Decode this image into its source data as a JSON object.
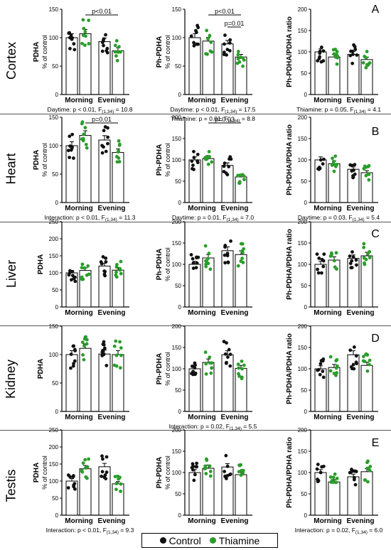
{
  "colors": {
    "control": "#111111",
    "thiamine": "#2a9d2a"
  },
  "legend": {
    "control": "Control",
    "thiamine": "Thiamine"
  },
  "groups": [
    "Morning",
    "Evening"
  ],
  "tissues": [
    "Cortex",
    "Heart",
    "Liver",
    "Kidney",
    "Testis"
  ],
  "panel_letters": [
    "A",
    "B",
    "C",
    "D",
    "E"
  ],
  "chart_data": [
    {
      "type": "bar",
      "row": 0,
      "col": 0,
      "ylabel": "PDHA",
      "ylabel2": "% of control",
      "ylim": [
        0,
        150
      ],
      "yticks": [
        0,
        50,
        100,
        150
      ],
      "categories": [
        "Morning",
        "Evening"
      ],
      "series": [
        {
          "name": "Control",
          "values": [
            100,
            93
          ]
        },
        {
          "name": "Thiamine",
          "values": [
            107,
            77
          ]
        }
      ],
      "sig": [
        {
          "label": "p<0.01",
          "from": 1,
          "to": 3,
          "level": 1
        }
      ],
      "stat": [
        "Daytime: p < 0.01, F(1,34) = 10.8"
      ]
    },
    {
      "type": "bar",
      "row": 0,
      "col": 1,
      "ylabel": "Ph-PDHA",
      "ylabel2": "% of control",
      "ylim": [
        0,
        150
      ],
      "yticks": [
        0,
        50,
        100,
        150
      ],
      "categories": [
        "Morning",
        "Evening"
      ],
      "series": [
        {
          "name": "Control",
          "values": [
            100,
            89
          ]
        },
        {
          "name": "Thiamine",
          "values": [
            94,
            66
          ]
        }
      ],
      "sig": [
        {
          "label": "p<0.01",
          "from": 1,
          "to": 3,
          "level": 1
        },
        {
          "label": "p=0.01",
          "from": 2,
          "to": 3,
          "level": 0
        }
      ],
      "stat": [
        "Daytime: p < 0.01, F(1,34) = 17.5",
        "Thiamine: p = 0.01, F(1,34) = 8.8"
      ]
    },
    {
      "type": "bar",
      "row": 0,
      "col": 2,
      "ylabel": "Ph-PDHA/PDHA ratio",
      "ylabel2": "",
      "ylim": [
        0,
        200
      ],
      "yticks": [
        0,
        50,
        100,
        150,
        200
      ],
      "categories": [
        "Morning",
        "Evening"
      ],
      "series": [
        {
          "name": "Control",
          "values": [
            100,
            94
          ]
        },
        {
          "name": "Thiamine",
          "values": [
            88,
            82
          ]
        }
      ],
      "sig": [],
      "stat": [
        "Thiamine: p = 0.05, F(1,34) = 4.1"
      ]
    },
    {
      "type": "bar",
      "row": 1,
      "col": 0,
      "ylabel": "PDHA",
      "ylabel2": "% of control",
      "ylim": [
        0,
        150
      ],
      "yticks": [
        0,
        50,
        100,
        150
      ],
      "categories": [
        "Morning",
        "Evening"
      ],
      "series": [
        {
          "name": "Control",
          "values": [
            100,
            110
          ]
        },
        {
          "name": "Thiamine",
          "values": [
            118,
            88
          ]
        }
      ],
      "sig": [
        {
          "label": "p=0.01",
          "from": 1,
          "to": 3,
          "level": 1
        }
      ],
      "stat": [
        "Interaction: p < 0.01, F(1,34) = 11.3"
      ]
    },
    {
      "type": "bar",
      "row": 1,
      "col": 1,
      "ylabel": "Ph-PDHA",
      "ylabel2": "% of control",
      "ylim": [
        0,
        200
      ],
      "yticks": [
        0,
        50,
        100,
        150,
        200
      ],
      "categories": [
        "Morning",
        "Evening"
      ],
      "series": [
        {
          "name": "Control",
          "values": [
            100,
            87
          ]
        },
        {
          "name": "Thiamine",
          "values": [
            103,
            60
          ]
        }
      ],
      "sig": [
        {
          "label": "p=0.03",
          "from": 1,
          "to": 3,
          "level": 1
        }
      ],
      "stat": [
        "Daytime: p = 0.01, F(1,34) = 7.0"
      ]
    },
    {
      "type": "bar",
      "row": 1,
      "col": 2,
      "ylabel": "Ph-PDHA/PDHA ratio",
      "ylabel2": "",
      "ylim": [
        0,
        200
      ],
      "yticks": [
        0,
        50,
        100,
        150,
        200
      ],
      "categories": [
        "Morning",
        "Evening"
      ],
      "series": [
        {
          "name": "Control",
          "values": [
            100,
            78
          ]
        },
        {
          "name": "Thiamine",
          "values": [
            91,
            70
          ]
        }
      ],
      "sig": [],
      "stat": [
        "Daytime: p = 0.03, F(1,34) = 5.4"
      ]
    },
    {
      "type": "bar",
      "row": 2,
      "col": 0,
      "ylabel": "PDHA",
      "ylabel2": "",
      "ylim": [
        0,
        250
      ],
      "yticks": [
        0,
        50,
        100,
        150,
        200,
        250
      ],
      "categories": [
        "Morning",
        "Evening"
      ],
      "series": [
        {
          "name": "Control",
          "values": [
            100,
            120
          ]
        },
        {
          "name": "Thiamine",
          "values": [
            107,
            108
          ]
        }
      ],
      "sig": [],
      "stat": []
    },
    {
      "type": "bar",
      "row": 2,
      "col": 1,
      "ylabel": "Ph-PDHA",
      "ylabel2": "% of control",
      "ylim": [
        0,
        200
      ],
      "yticks": [
        0,
        50,
        100,
        150,
        200
      ],
      "categories": [
        "Morning",
        "Evening"
      ],
      "series": [
        {
          "name": "Control",
          "values": [
            100,
            132
          ]
        },
        {
          "name": "Thiamine",
          "values": [
            115,
            123
          ]
        }
      ],
      "sig": [],
      "stat": []
    },
    {
      "type": "bar",
      "row": 2,
      "col": 2,
      "ylabel": "Ph-PDHA/PDHA ratio",
      "ylabel2": "",
      "ylim": [
        0,
        200
      ],
      "yticks": [
        0,
        50,
        100,
        150,
        200
      ],
      "categories": [
        "Morning",
        "Evening"
      ],
      "series": [
        {
          "name": "Control",
          "values": [
            100,
            114
          ]
        },
        {
          "name": "Thiamine",
          "values": [
            110,
            120
          ]
        }
      ],
      "sig": [],
      "stat": []
    },
    {
      "type": "bar",
      "row": 3,
      "col": 0,
      "ylabel": "PDHA",
      "ylabel2": "",
      "ylim": [
        0,
        150
      ],
      "yticks": [
        0,
        50,
        100,
        150
      ],
      "categories": [
        "Morning",
        "Evening"
      ],
      "series": [
        {
          "name": "Control",
          "values": [
            100,
            101
          ]
        },
        {
          "name": "Thiamine",
          "values": [
            111,
            100
          ]
        }
      ],
      "sig": [],
      "stat": []
    },
    {
      "type": "bar",
      "row": 3,
      "col": 1,
      "ylabel": "Ph-PDHA",
      "ylabel2": "% of control",
      "ylim": [
        0,
        200
      ],
      "yticks": [
        0,
        50,
        100,
        150,
        200
      ],
      "categories": [
        "Morning",
        "Evening"
      ],
      "series": [
        {
          "name": "Control",
          "values": [
            100,
            133
          ]
        },
        {
          "name": "Thiamine",
          "values": [
            115,
            101
          ]
        }
      ],
      "sig": [],
      "stat": [
        "Interaction: p = 0.02, F(1,34) = 5.5"
      ]
    },
    {
      "type": "bar",
      "row": 3,
      "col": 2,
      "ylabel": "Ph-PDHA/PDHA ratio",
      "ylabel2": "",
      "ylim": [
        0,
        200
      ],
      "yticks": [
        0,
        50,
        100,
        150,
        200
      ],
      "categories": [
        "Morning",
        "Evening"
      ],
      "series": [
        {
          "name": "Control",
          "values": [
            100,
            133
          ]
        },
        {
          "name": "Thiamine",
          "values": [
            103,
            108
          ]
        }
      ],
      "sig": [],
      "stat": []
    },
    {
      "type": "bar",
      "row": 4,
      "col": 0,
      "ylabel": "PDHA",
      "ylabel2": "% of control",
      "ylim": [
        0,
        250
      ],
      "yticks": [
        0,
        50,
        100,
        150,
        200,
        250
      ],
      "categories": [
        "Morning",
        "Evening"
      ],
      "series": [
        {
          "name": "Control",
          "values": [
            100,
            142
          ]
        },
        {
          "name": "Thiamine",
          "values": [
            136,
            92
          ]
        }
      ],
      "sig": [],
      "stat": [
        "Interaction: p < 0.01, F(1,34) = 9.3"
      ]
    },
    {
      "type": "bar",
      "row": 4,
      "col": 1,
      "ylabel": "Ph-PDHA",
      "ylabel2": "% of control",
      "ylim": [
        0,
        200
      ],
      "yticks": [
        0,
        50,
        100,
        150,
        200
      ],
      "categories": [
        "Morning",
        "Evening"
      ],
      "series": [
        {
          "name": "Control",
          "values": [
            100,
            113
          ]
        },
        {
          "name": "Thiamine",
          "values": [
            110,
            95
          ]
        }
      ],
      "sig": [],
      "stat": []
    },
    {
      "type": "bar",
      "row": 4,
      "col": 2,
      "ylabel": "Ph-PDHA/PDHA ratio",
      "ylabel2": "",
      "ylim": [
        0,
        200
      ],
      "yticks": [
        0,
        50,
        100,
        150,
        200
      ],
      "categories": [
        "Morning",
        "Evening"
      ],
      "series": [
        {
          "name": "Control",
          "values": [
            100,
            90
          ]
        },
        {
          "name": "Thiamine",
          "values": [
            78,
            102
          ]
        }
      ],
      "sig": [],
      "stat": [
        "Interaction: p = 0.02, F(1,34) = 6.0"
      ]
    }
  ]
}
